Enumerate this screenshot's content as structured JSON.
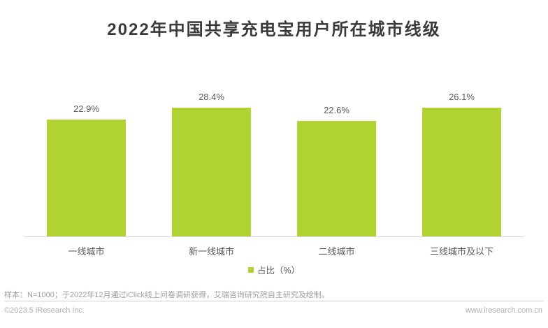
{
  "title": "2022年中国共享充电宝用户所在城市线级",
  "chart_data": {
    "type": "bar",
    "title": "2022年中国共享充电宝用户所在城市线级",
    "categories": [
      "一线城市",
      "新一线城市",
      "二线城市",
      "三线城市及以下"
    ],
    "values": [
      22.9,
      28.4,
      22.6,
      26.1
    ],
    "value_labels": [
      "22.9%",
      "28.4%",
      "22.6%",
      "26.1%"
    ],
    "series_name": "占比（%）",
    "xlabel": "",
    "ylabel": "占比（%）",
    "ylim": [
      0,
      28.5
    ],
    "grid": false,
    "legend_position": "bottom",
    "bar_color": "#b1d233",
    "axis_line_color": "#d9d9d9"
  },
  "legend": {
    "label": "占比（%）",
    "swatch_color": "#b1d233"
  },
  "footer": {
    "note": "样本：N=1000；于2022年12月通过iClick线上问卷调研获得，艾瑞咨询研究院自主研究及绘制。",
    "copyright": "©2023.5 iResearch Inc.",
    "website": "www.iresearch.com.cn"
  }
}
